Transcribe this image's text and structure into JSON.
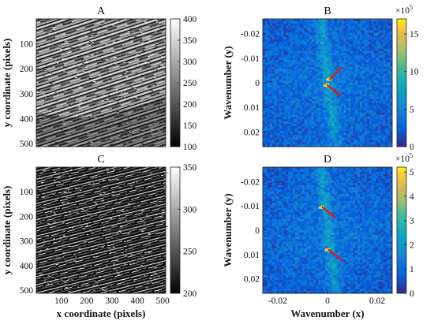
{
  "chart_data": [
    {
      "panel": "A",
      "type": "heatmap",
      "title": "A",
      "xlabel": "",
      "ylabel": "y coordinate (pixels)",
      "xlim": [
        1,
        512
      ],
      "ylim": [
        1,
        512
      ],
      "x_ticks": [],
      "y_ticks": [
        "100",
        "200",
        "300",
        "400",
        "500"
      ],
      "colormap": "gray",
      "colorbar": {
        "min": 100,
        "max": 400,
        "ticks": [
          "400",
          "350",
          "300",
          "250",
          "200",
          "150",
          "100"
        ]
      }
    },
    {
      "panel": "B",
      "type": "heatmap",
      "title": "B",
      "xlabel": "",
      "ylabel": "Wavenumber (y)",
      "xlim": [
        -0.026,
        0.026
      ],
      "ylim": [
        -0.026,
        0.026
      ],
      "x_ticks": [],
      "y_ticks": [
        "-0.02",
        "-0.01",
        "0",
        "0.01",
        "0.02"
      ],
      "colormap": "parula",
      "colorbar": {
        "min": 0,
        "max": 17,
        "ticks": [
          "15",
          "10",
          "5",
          "0"
        ],
        "scale": "×10^5",
        "scale_base": "×10",
        "scale_exp": "5"
      },
      "arrows": [
        {
          "x": 0.001,
          "y": -0.0015,
          "dir": "up-right"
        },
        {
          "x": 0.0,
          "y": 0.001,
          "dir": "down-right"
        }
      ]
    },
    {
      "panel": "C",
      "type": "heatmap",
      "title": "C",
      "xlabel": "x coordinate (pixels)",
      "ylabel": "y coordinate (pixels)",
      "xlim": [
        1,
        512
      ],
      "ylim": [
        1,
        512
      ],
      "x_ticks": [
        "100",
        "200",
        "300",
        "400",
        "500"
      ],
      "y_ticks": [
        "100",
        "200",
        "300",
        "400",
        "500"
      ],
      "colormap": "gray",
      "colorbar": {
        "min": 200,
        "max": 350,
        "ticks": [
          "350",
          "300",
          "250",
          "200"
        ]
      }
    },
    {
      "panel": "D",
      "type": "heatmap",
      "title": "D",
      "xlabel": "Wavenumber (x)",
      "ylabel": "Wavenumber (y)",
      "xlim": [
        -0.026,
        0.026
      ],
      "ylim": [
        -0.026,
        0.026
      ],
      "x_ticks": [
        "-0.02",
        "0",
        "0.02"
      ],
      "y_ticks": [
        "-0.02",
        "-0.01",
        "0",
        "0.01",
        "0.02"
      ],
      "colormap": "parula",
      "colorbar": {
        "min": 0,
        "max": 5.2,
        "ticks": [
          "5",
          "4",
          "3",
          "2",
          "1",
          "0"
        ],
        "scale": "×10^5",
        "scale_base": "×10",
        "scale_exp": "5"
      },
      "arrows": [
        {
          "x": -0.002,
          "y": -0.0095,
          "dir": "down-right"
        },
        {
          "x": 0.0005,
          "y": 0.008,
          "dir": "down-right"
        }
      ]
    }
  ]
}
